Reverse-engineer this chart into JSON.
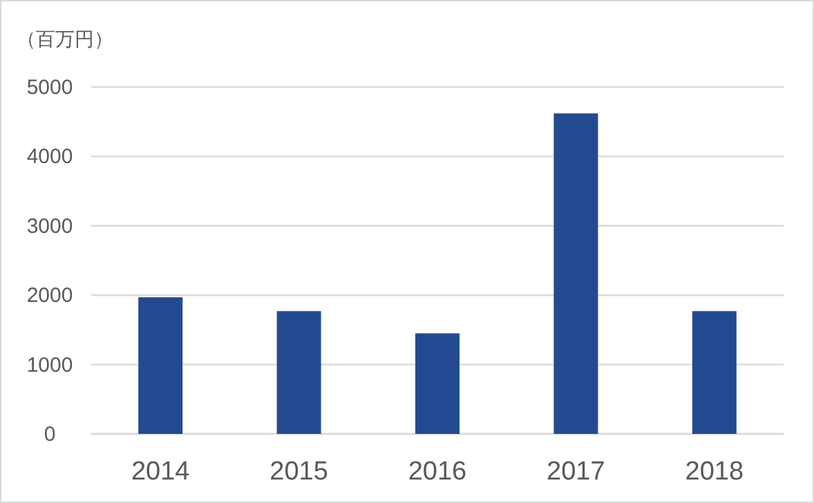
{
  "chart_data": {
    "type": "bar",
    "ylabel": "（百万円）",
    "categories": [
      "2014",
      "2015",
      "2016",
      "2017",
      "2018"
    ],
    "values": [
      1970,
      1770,
      1450,
      4620,
      1770
    ],
    "color": "#234a90",
    "ylim": [
      0,
      5000
    ],
    "yticks": [
      0,
      1000,
      2000,
      3000,
      4000,
      5000
    ],
    "grid": "y"
  }
}
